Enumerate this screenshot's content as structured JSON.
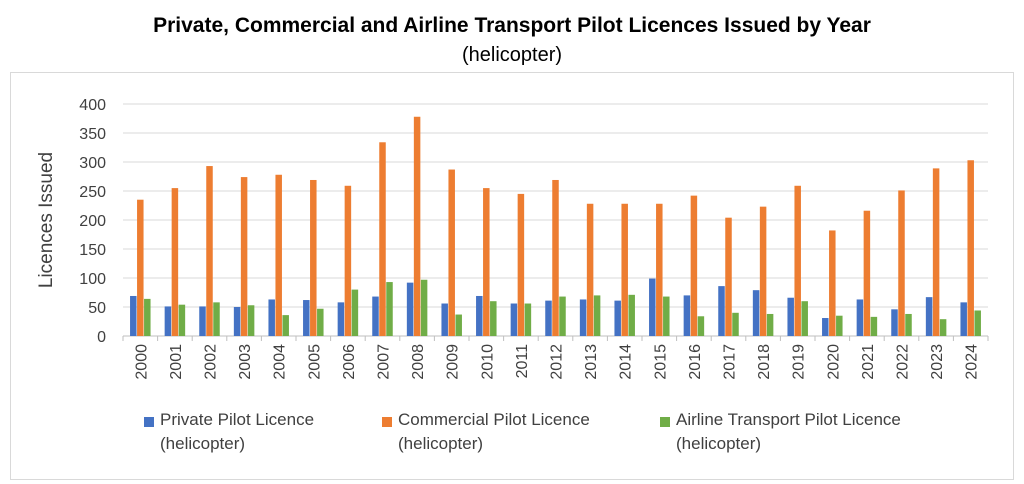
{
  "chart_data": {
    "type": "bar",
    "title": "Private, Commercial and Airline Transport Pilot Licences Issued by Year",
    "subtitle": "(helicopter)",
    "xlabel": "",
    "ylabel": "Licences Issued",
    "ylim": [
      0,
      400
    ],
    "yticks": [
      "0",
      "50",
      "100",
      "150",
      "200",
      "250",
      "300",
      "350",
      "400"
    ],
    "grid": true,
    "legend_position": "bottom",
    "categories": [
      "2000",
      "2001",
      "2002",
      "2003",
      "2004",
      "2005",
      "2006",
      "2007",
      "2008",
      "2009",
      "2010",
      "2011",
      "2012",
      "2013",
      "2014",
      "2015",
      "2016",
      "2017",
      "2018",
      "2019",
      "2020",
      "2021",
      "2022",
      "2023",
      "2024"
    ],
    "series": [
      {
        "name": "Private Pilot Licence\n(helicopter)",
        "color": "#4472c4",
        "values": [
          69,
          51,
          51,
          50,
          63,
          62,
          58,
          68,
          92,
          56,
          69,
          56,
          61,
          63,
          61,
          99,
          70,
          86,
          79,
          66,
          31,
          63,
          46,
          67,
          58
        ]
      },
      {
        "name": "Commercial Pilot Licence\n(helicopter)",
        "color": "#ed7d31",
        "values": [
          235,
          255,
          293,
          274,
          278,
          269,
          259,
          334,
          378,
          287,
          255,
          245,
          269,
          228,
          228,
          228,
          242,
          204,
          223,
          259,
          182,
          216,
          251,
          289,
          303
        ]
      },
      {
        "name": "Airline Transport Pilot Licence\n(helicopter)",
        "color": "#70ad47",
        "values": [
          64,
          54,
          58,
          53,
          36,
          47,
          80,
          93,
          97,
          37,
          60,
          56,
          68,
          70,
          71,
          68,
          34,
          40,
          38,
          60,
          35,
          33,
          38,
          29,
          44
        ]
      }
    ]
  }
}
